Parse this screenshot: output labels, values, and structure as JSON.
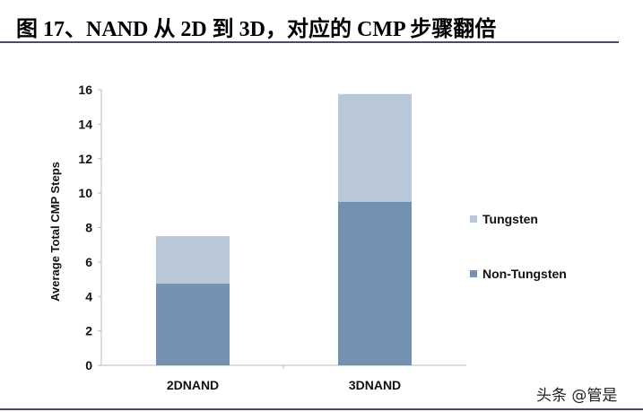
{
  "title": "图 17、NAND 从 2D 到 3D，对应的 CMP 步骤翻倍",
  "watermark": "头条 @管是",
  "chart_data": {
    "type": "bar",
    "stacked": true,
    "categories": [
      "2DNAND",
      "3DNAND"
    ],
    "series": [
      {
        "name": "Non-Tungsten",
        "values": [
          4.75,
          9.5
        ],
        "color": "#7391b0"
      },
      {
        "name": "Tungsten",
        "values": [
          2.75,
          6.25
        ],
        "color": "#b8c8d9"
      }
    ],
    "ylabel": "Average Total CMP Steps",
    "xlabel": "",
    "ylim": [
      0,
      16
    ],
    "yticks": [
      0,
      2,
      4,
      6,
      8,
      10,
      12,
      14,
      16
    ],
    "grid": false,
    "legend": "right"
  }
}
